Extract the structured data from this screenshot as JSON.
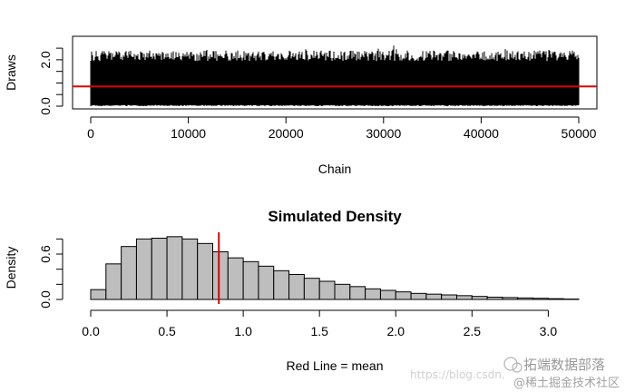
{
  "chart_data": [
    {
      "type": "line",
      "title": "",
      "xlabel": "Chain",
      "ylabel": "Draws",
      "xlim": [
        0,
        50000
      ],
      "ylim": [
        0,
        2.7
      ],
      "xticks": [
        0,
        10000,
        20000,
        30000,
        40000,
        50000
      ],
      "xtick_labels": [
        "0",
        "10000",
        "20000",
        "30000",
        "40000",
        "50000"
      ],
      "yticks": [
        0,
        0.5,
        1.0,
        1.5,
        2.0,
        2.5
      ],
      "ytick_labels": [
        "0.0",
        "",
        "",
        "",
        "2.0",
        ""
      ],
      "series": [
        {
          "n_draws": 50000,
          "typical_range": [
            0,
            2.2
          ],
          "max_observed": 2.7,
          "color": "#000000"
        }
      ],
      "reference_line": {
        "orientation": "horizontal",
        "y": 0.85,
        "color": "#dd0000"
      },
      "grid": false
    },
    {
      "type": "bar",
      "title": "Simulated Density",
      "xlabel": "Red Line = mean",
      "ylabel": "Density",
      "xlim": [
        0,
        3.2
      ],
      "ylim": [
        0,
        0.9
      ],
      "bin_width": 0.1,
      "bin_start": 0,
      "values": [
        0.13,
        0.47,
        0.7,
        0.8,
        0.81,
        0.83,
        0.8,
        0.74,
        0.63,
        0.55,
        0.5,
        0.44,
        0.38,
        0.33,
        0.28,
        0.24,
        0.2,
        0.17,
        0.14,
        0.12,
        0.1,
        0.08,
        0.07,
        0.06,
        0.05,
        0.04,
        0.03,
        0.025,
        0.02,
        0.015,
        0.01,
        0.005
      ],
      "xticks": [
        0,
        0.5,
        1.0,
        1.5,
        2.0,
        2.5,
        3.0
      ],
      "xtick_labels": [
        "0.0",
        "0.5",
        "1.0",
        "1.5",
        "2.0",
        "2.5",
        "3.0"
      ],
      "yticks": [
        0,
        0.2,
        0.4,
        0.6,
        0.8
      ],
      "ytick_labels": [
        "0.0",
        "",
        "",
        "0.6",
        ""
      ],
      "bar_color": "#bebebe",
      "reference_line": {
        "orientation": "vertical",
        "x": 0.84,
        "color": "#dd0000"
      },
      "grid": false
    }
  ],
  "watermark": {
    "url_text": "https://blog.csdn.",
    "brand_line1": "拓端数据部落",
    "brand_line2": "@稀土掘金技术社区"
  }
}
